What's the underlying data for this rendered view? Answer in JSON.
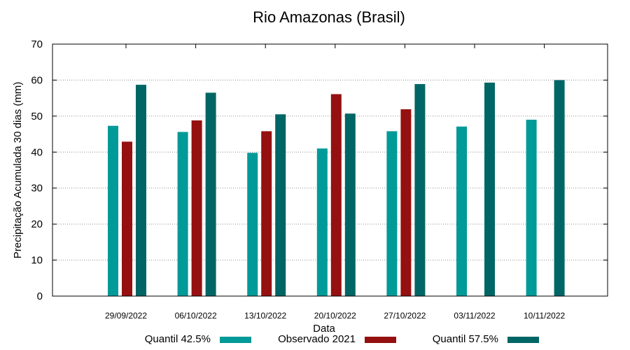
{
  "chart_data": {
    "type": "bar",
    "title": "Rio Amazonas (Brasil)",
    "xlabel": "Data",
    "ylabel": "Precipitação Acumulada 30 dias (mm)",
    "ylim": [
      0,
      70
    ],
    "yticks": [
      0,
      10,
      20,
      30,
      40,
      50,
      60,
      70
    ],
    "grid": true,
    "legend_position": "bottom",
    "categories": [
      "29/09/2022",
      "06/10/2022",
      "13/10/2022",
      "20/10/2022",
      "27/10/2022",
      "03/11/2022",
      "10/11/2022"
    ],
    "series": [
      {
        "name": "Quantil 42.5%",
        "color": "#009a98",
        "values": [
          47.3,
          45.6,
          39.8,
          41.0,
          45.8,
          47.1,
          49.0
        ]
      },
      {
        "name": "Observado 2021",
        "color": "#951010",
        "values": [
          42.9,
          48.8,
          45.8,
          56.1,
          51.9,
          null,
          null
        ]
      },
      {
        "name": "Quantil 57.5%",
        "color": "#006665",
        "values": [
          58.7,
          56.5,
          50.5,
          50.7,
          58.9,
          59.3,
          60.0
        ]
      }
    ]
  }
}
